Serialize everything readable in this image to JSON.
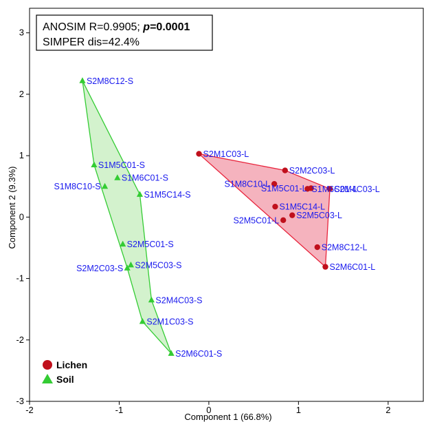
{
  "colors": {
    "lichen_marker": "#c0101c",
    "lichen_fill": "#f29aa8",
    "lichen_stroke": "#e8243c",
    "soil_marker": "#33cc33",
    "soil_fill": "#c8efc0",
    "soil_stroke": "#33cc33",
    "point_label": "#1a1aee"
  },
  "annotation": {
    "line1_prefix": "ANOSIM R=0.9905; ",
    "line1_p": "p",
    "line1_pval": "=0.0001",
    "line2": "SIMPER dis=42.4%"
  },
  "chart_data": {
    "type": "scatter",
    "xlabel": "Component 1 (66.8%)",
    "ylabel": "Component 2 (9.3%)",
    "xlim": [
      -2,
      2.4
    ],
    "ylim": [
      -3,
      3.4
    ],
    "xticks": [
      -2,
      -1,
      0,
      1,
      2
    ],
    "yticks": [
      -3,
      -2,
      -1,
      0,
      1,
      2,
      3
    ],
    "grid": false,
    "legend_position": "bottom-left",
    "series": [
      {
        "name": "Lichen",
        "marker": "circle",
        "points": [
          {
            "label": "S2M1C03-L",
            "x": -0.11,
            "y": 1.03
          },
          {
            "label": "S2M2C03-L",
            "x": 0.85,
            "y": 0.76
          },
          {
            "label": "S1M8C10-L",
            "x": 0.73,
            "y": 0.54
          },
          {
            "label": "S1M6C01-L",
            "x": 1.1,
            "y": 0.46
          },
          {
            "label": "S1M5C01-L",
            "x": 1.14,
            "y": 0.47
          },
          {
            "label": "S2M4C03-L",
            "x": 1.35,
            "y": 0.46
          },
          {
            "label": "S1M5C14-L",
            "x": 0.74,
            "y": 0.17
          },
          {
            "label": "S2M5C03-L",
            "x": 0.93,
            "y": 0.03
          },
          {
            "label": "S2M5C01-L",
            "x": 0.83,
            "y": -0.05
          },
          {
            "label": "S2M8C12-L",
            "x": 1.21,
            "y": -0.49
          },
          {
            "label": "S2M6C01-L",
            "x": 1.3,
            "y": -0.81
          }
        ],
        "hull": [
          -0.11,
          1.03,
          0.85,
          0.76,
          1.35,
          0.46,
          1.3,
          -0.81
        ]
      },
      {
        "name": "Soil",
        "marker": "triangle",
        "points": [
          {
            "label": "S2M8C12-S",
            "x": -1.41,
            "y": 2.22
          },
          {
            "label": "S1M5C01-S",
            "x": -1.28,
            "y": 0.85
          },
          {
            "label": "S1M8C10-S",
            "x": -1.16,
            "y": 0.5
          },
          {
            "label": "S1M6C01-S",
            "x": -1.02,
            "y": 0.64
          },
          {
            "label": "S1M5C14-S",
            "x": -0.77,
            "y": 0.37
          },
          {
            "label": "S2M5C01-S",
            "x": -0.96,
            "y": -0.44
          },
          {
            "label": "S2M2C03-S",
            "x": -0.91,
            "y": -0.83
          },
          {
            "label": "S2M5C03-S",
            "x": -0.87,
            "y": -0.78
          },
          {
            "label": "S2M4C03-S",
            "x": -0.64,
            "y": -1.35
          },
          {
            "label": "S2M1C03-S",
            "x": -0.74,
            "y": -1.7
          },
          {
            "label": "S2M6C01-S",
            "x": -0.42,
            "y": -2.22
          }
        ],
        "hull": [
          -1.41,
          2.22,
          -0.77,
          0.37,
          -0.64,
          -1.35,
          -0.42,
          -2.22,
          -0.74,
          -1.7,
          -0.91,
          -0.83,
          -1.28,
          0.85
        ]
      }
    ]
  },
  "legend": {
    "items": [
      {
        "label": "Lichen"
      },
      {
        "label": "Soil"
      }
    ]
  }
}
